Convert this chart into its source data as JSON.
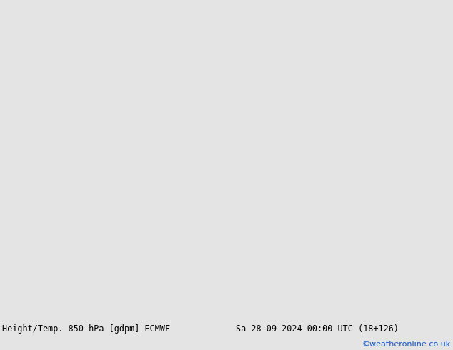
{
  "title_left": "Height/Temp. 850 hPa [gdpm] ECMWF",
  "title_right": "Sa 28-09-2024 00:00 UTC (18+126)",
  "copyright": "©weatheronline.co.uk",
  "bg_ocean": "#d4d4d4",
  "bg_land": "#c8c8c8",
  "aus_green": "#b4e49a",
  "nz_green": "#b4e49a",
  "bottom_bg": "#e4e4e4",
  "copyright_color": "#1155cc",
  "orange_temp": "#e08020",
  "green_temp": "#88aa10",
  "cyan_temp": "#00bbbb",
  "black_contour": "#000000",
  "lon_min": 88,
  "lon_max": 188,
  "lat_min": -57,
  "lat_max": 18
}
